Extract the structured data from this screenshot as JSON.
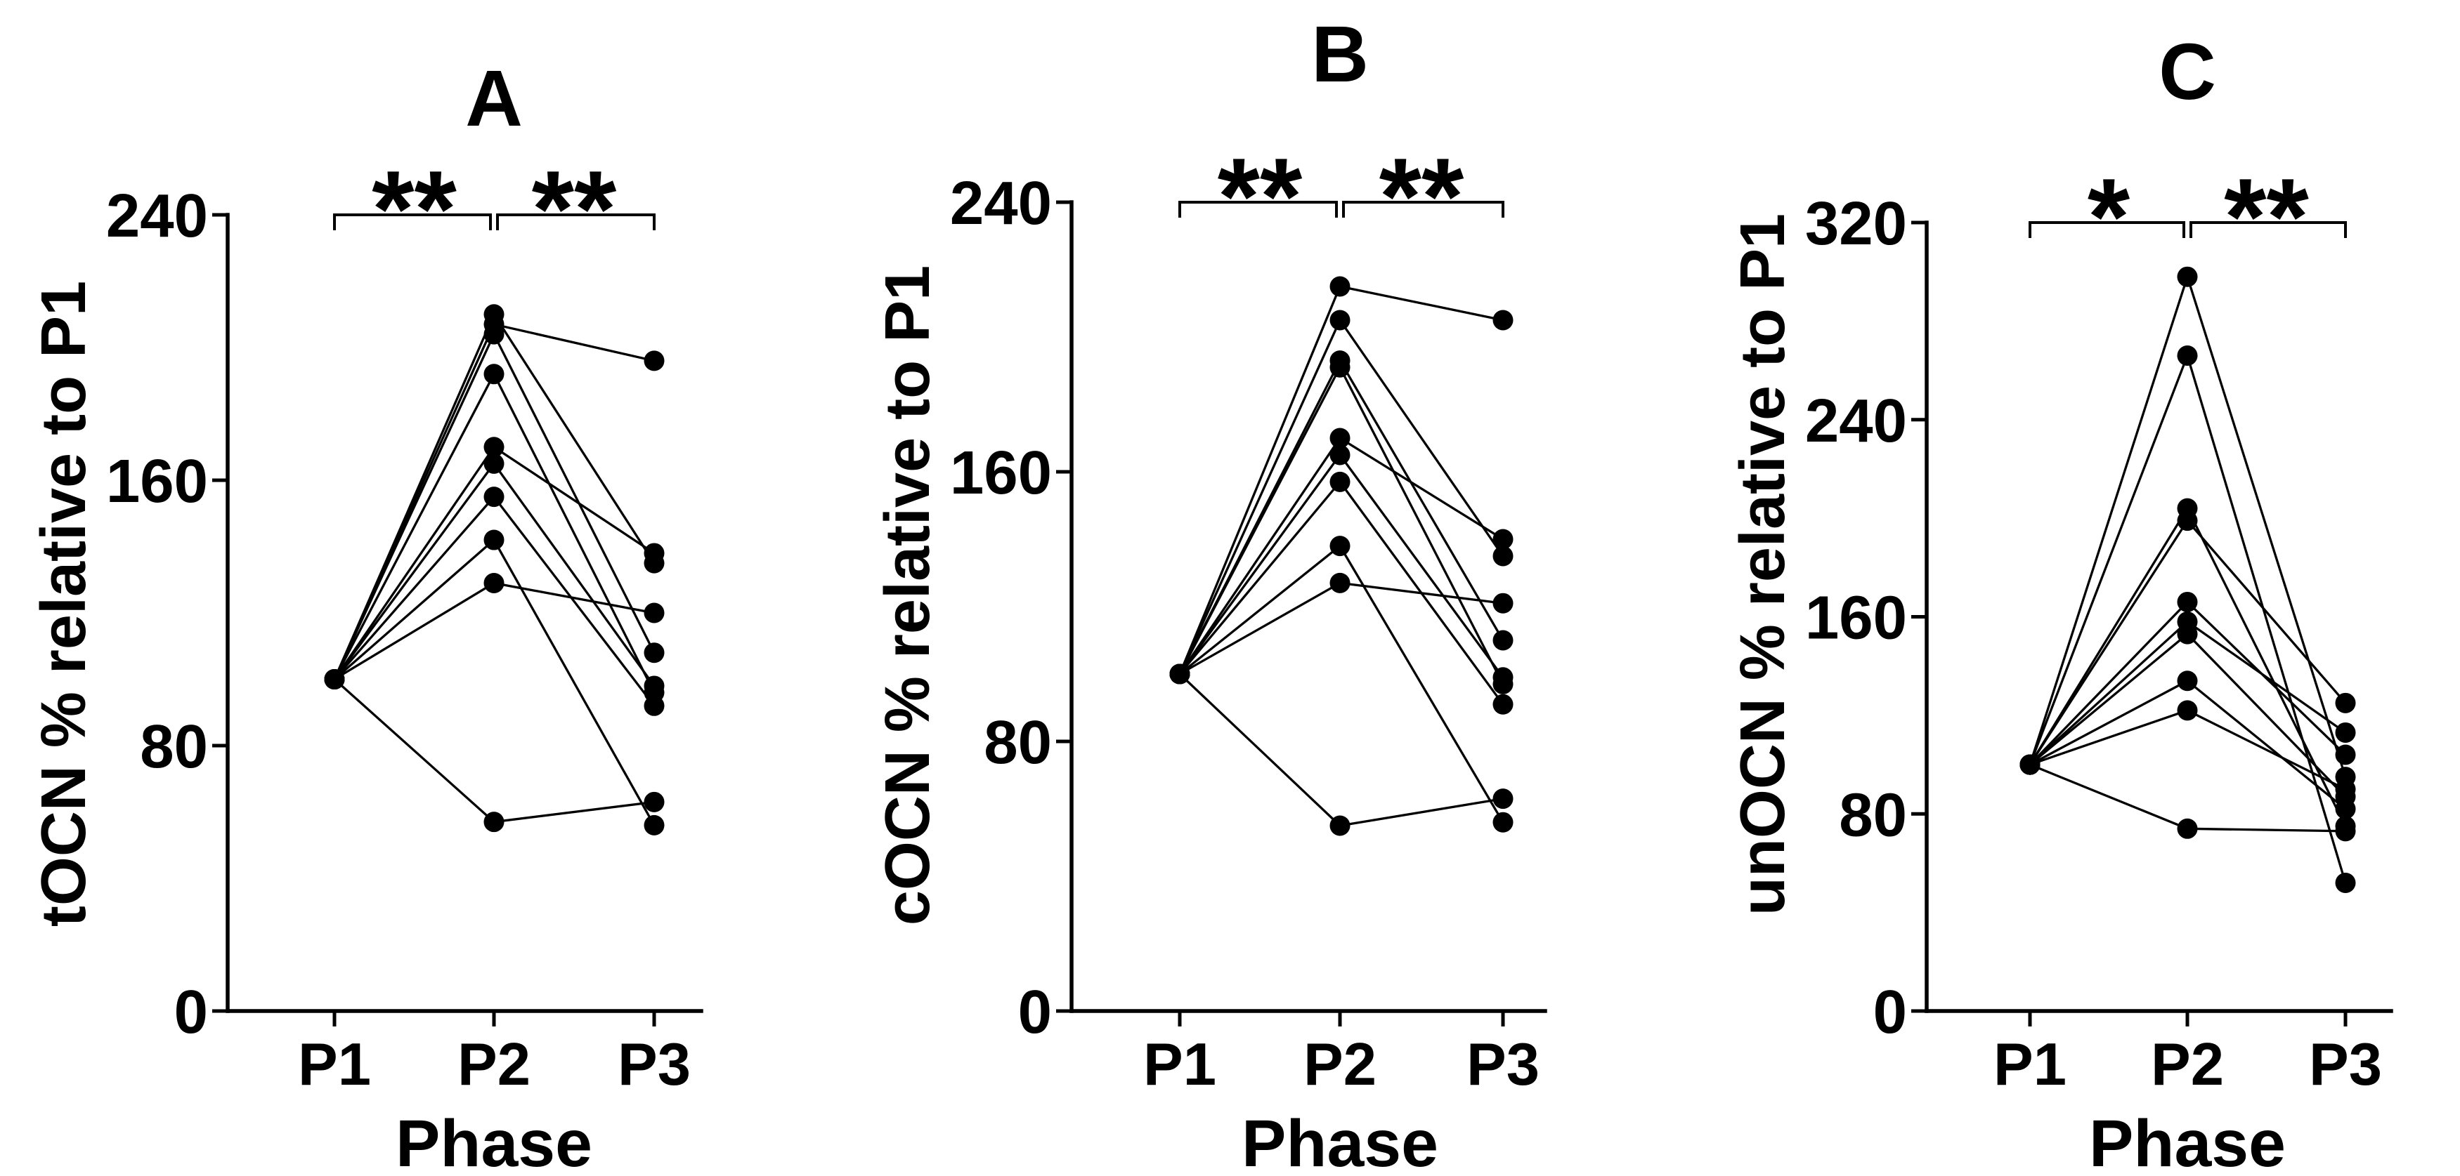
{
  "chart_data": [
    {
      "type": "line",
      "title": "A",
      "xlabel": "Phase",
      "ylabel": "tOCN % relative to P1",
      "categories": [
        "P1",
        "P2",
        "P3"
      ],
      "ylim": [
        0,
        240
      ],
      "yticks": [
        0,
        80,
        160,
        240
      ],
      "grid": false,
      "series": [
        {
          "values": [
            100,
            207,
            196
          ]
        },
        {
          "values": [
            100,
            210,
            135
          ]
        },
        {
          "values": [
            100,
            204,
            108
          ]
        },
        {
          "values": [
            100,
            192,
            96
          ]
        },
        {
          "values": [
            100,
            170,
            138
          ]
        },
        {
          "values": [
            100,
            165,
            98
          ]
        },
        {
          "values": [
            100,
            155,
            92
          ]
        },
        {
          "values": [
            100,
            142,
            56
          ]
        },
        {
          "values": [
            100,
            129,
            120
          ]
        },
        {
          "values": [
            100,
            57,
            63
          ]
        }
      ],
      "significance": [
        {
          "from": 0,
          "to": 1,
          "label": "**"
        },
        {
          "from": 1,
          "to": 2,
          "label": "**"
        }
      ],
      "colors": {
        "line": "#000000",
        "marker": "#000000"
      }
    },
    {
      "type": "line",
      "title": "B",
      "xlabel": "Phase",
      "ylabel": "cOCN % relative to P1",
      "categories": [
        "P1",
        "P2",
        "P3"
      ],
      "ylim": [
        0,
        240
      ],
      "yticks": [
        0,
        80,
        160,
        240
      ],
      "grid": false,
      "series": [
        {
          "values": [
            100,
            215,
            205
          ]
        },
        {
          "values": [
            100,
            205,
            135
          ]
        },
        {
          "values": [
            100,
            193,
            110
          ]
        },
        {
          "values": [
            100,
            191,
            97
          ]
        },
        {
          "values": [
            100,
            170,
            140
          ]
        },
        {
          "values": [
            100,
            165,
            99
          ]
        },
        {
          "values": [
            100,
            157,
            91
          ]
        },
        {
          "values": [
            100,
            138,
            56
          ]
        },
        {
          "values": [
            100,
            127,
            121
          ]
        },
        {
          "values": [
            100,
            55,
            63
          ]
        }
      ],
      "significance": [
        {
          "from": 0,
          "to": 1,
          "label": "**"
        },
        {
          "from": 1,
          "to": 2,
          "label": "**"
        }
      ],
      "colors": {
        "line": "#000000",
        "marker": "#000000"
      }
    },
    {
      "type": "line",
      "title": "C",
      "xlabel": "Phase",
      "ylabel": "unOCN % relative to P1",
      "categories": [
        "P1",
        "P2",
        "P3"
      ],
      "ylim": [
        0,
        320
      ],
      "yticks": [
        0,
        80,
        160,
        240,
        320
      ],
      "grid": false,
      "series": [
        {
          "values": [
            100,
            298,
            95
          ]
        },
        {
          "values": [
            100,
            266,
            52
          ]
        },
        {
          "values": [
            100,
            204,
            75
          ]
        },
        {
          "values": [
            100,
            199,
            125
          ]
        },
        {
          "values": [
            100,
            166,
            104
          ]
        },
        {
          "values": [
            100,
            158,
            113
          ]
        },
        {
          "values": [
            100,
            153,
            87
          ]
        },
        {
          "values": [
            100,
            134,
            82
          ]
        },
        {
          "values": [
            100,
            122,
            90
          ]
        },
        {
          "values": [
            100,
            74,
            73
          ]
        }
      ],
      "significance": [
        {
          "from": 0,
          "to": 1,
          "label": "*"
        },
        {
          "from": 1,
          "to": 2,
          "label": "**"
        }
      ],
      "colors": {
        "line": "#000000",
        "marker": "#000000"
      }
    }
  ]
}
